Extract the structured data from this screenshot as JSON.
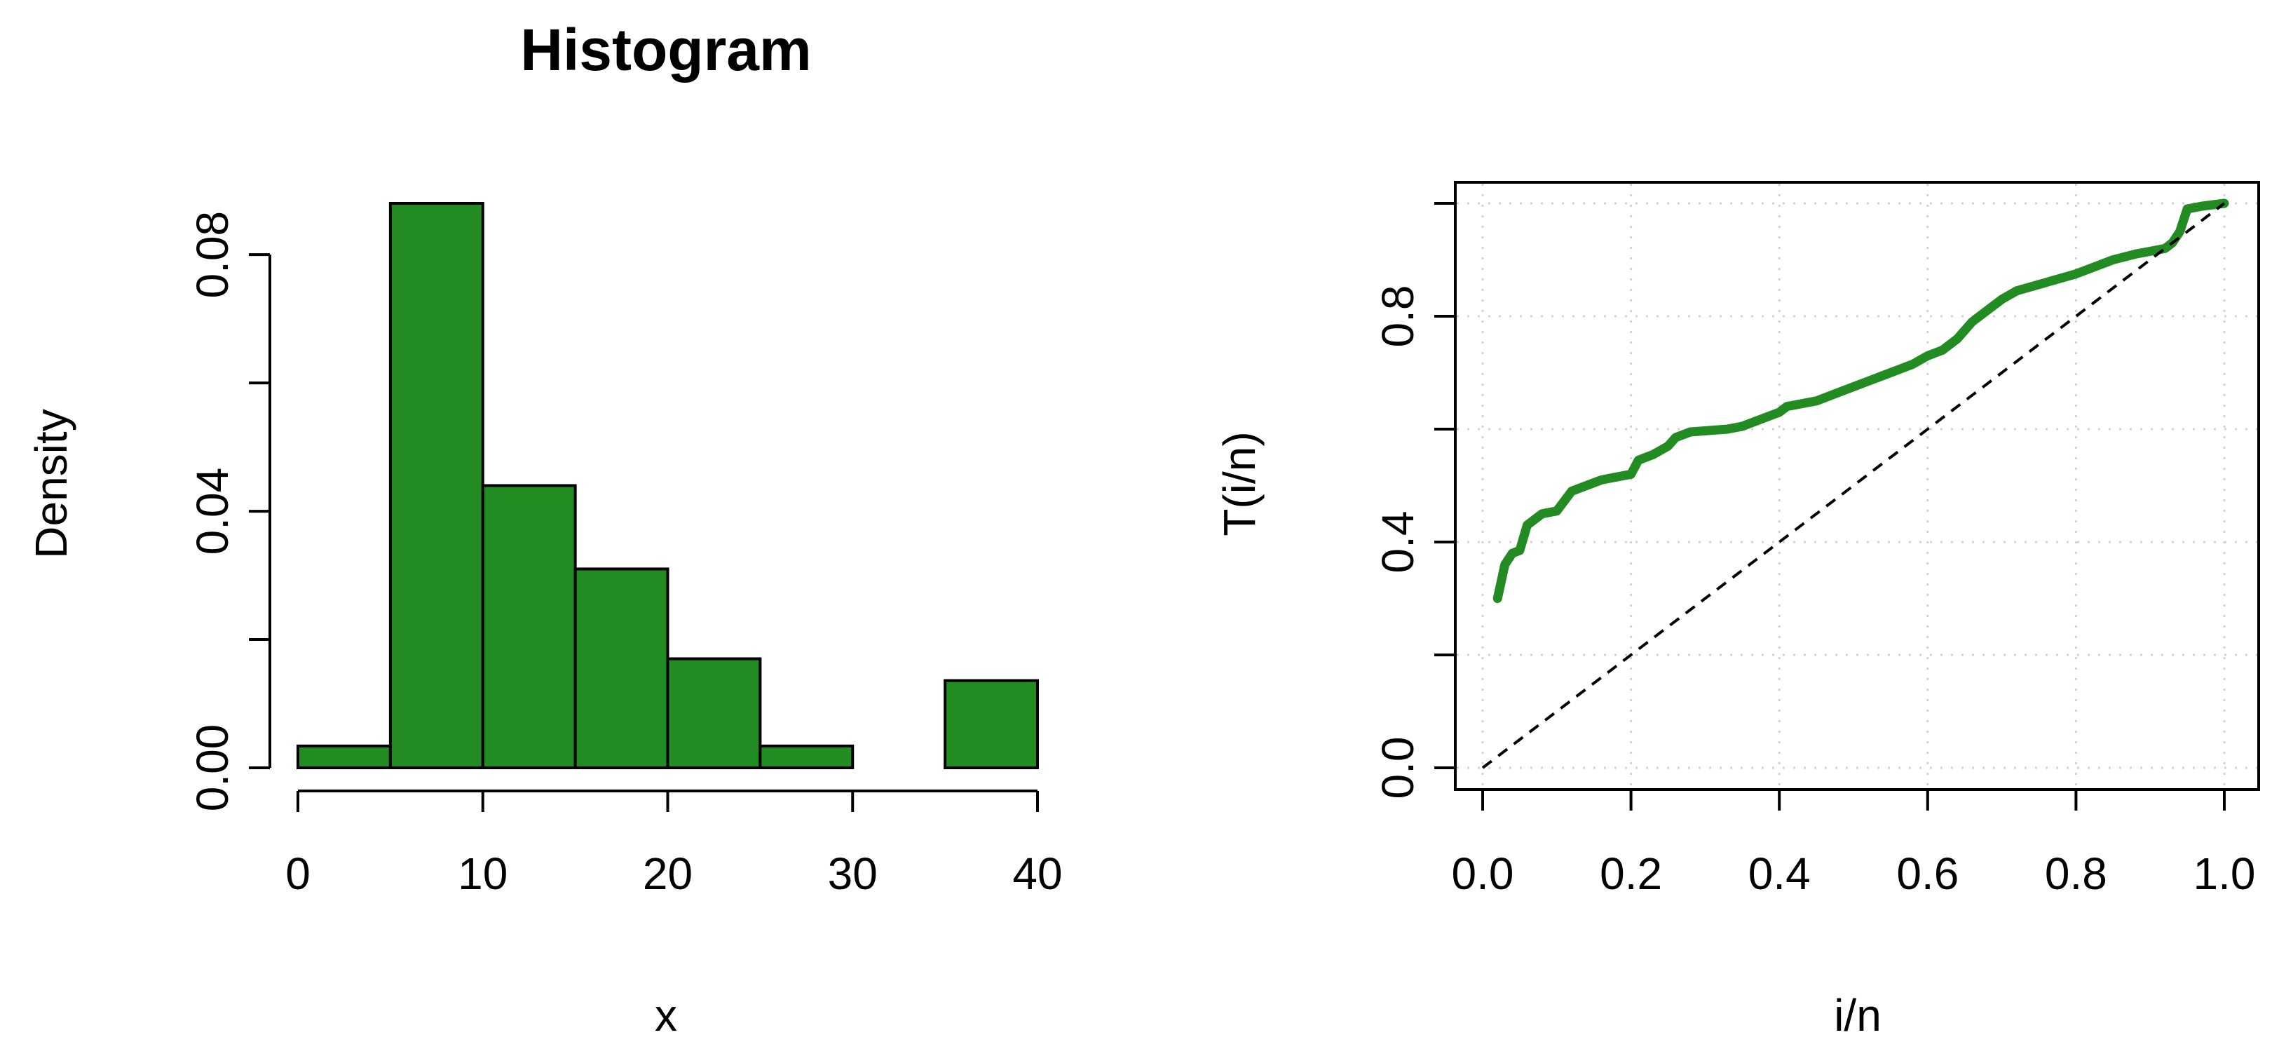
{
  "chart_data": [
    {
      "type": "bar",
      "title": "Histogram",
      "xlabel": "x",
      "ylabel": "Density",
      "bins": [
        [
          0,
          5
        ],
        [
          5,
          10
        ],
        [
          10,
          15
        ],
        [
          15,
          20
        ],
        [
          20,
          25
        ],
        [
          25,
          30
        ],
        [
          30,
          35
        ],
        [
          35,
          40
        ]
      ],
      "values": [
        0.0034,
        0.088,
        0.044,
        0.031,
        0.017,
        0.0034,
        0,
        0.0136
      ],
      "xlim": [
        0,
        40
      ],
      "ylim": [
        0,
        0.088
      ],
      "x_ticks": [
        0,
        10,
        20,
        30,
        40
      ],
      "x_tick_labels": [
        "0",
        "10",
        "20",
        "30",
        "40"
      ],
      "y_ticks": [
        0,
        0.02,
        0.04,
        0.06,
        0.08
      ],
      "y_tick_labels": [
        "0.00",
        "",
        "0.04",
        "",
        "0.08"
      ],
      "bar_color": "#228B22",
      "grid": false
    },
    {
      "type": "line",
      "title": "",
      "xlabel": "i/n",
      "ylabel": "T(i/n)",
      "xlim": [
        0,
        1
      ],
      "ylim": [
        0,
        1
      ],
      "x_ticks": [
        0,
        0.2,
        0.4,
        0.6,
        0.8,
        1.0
      ],
      "x_tick_labels": [
        "0.0",
        "0.2",
        "0.4",
        "0.6",
        "0.8",
        "1.0"
      ],
      "y_ticks": [
        0,
        0.2,
        0.4,
        0.6,
        0.8,
        1.0
      ],
      "y_tick_labels": [
        "0.0",
        "",
        "0.4",
        "",
        "0.8",
        ""
      ],
      "grid": true,
      "series": [
        {
          "color": "#228B22",
          "points": [
            [
              0.02,
              0.3
            ],
            [
              0.03,
              0.36
            ],
            [
              0.04,
              0.38
            ],
            [
              0.05,
              0.385
            ],
            [
              0.06,
              0.43
            ],
            [
              0.08,
              0.45
            ],
            [
              0.1,
              0.455
            ],
            [
              0.12,
              0.49
            ],
            [
              0.14,
              0.5
            ],
            [
              0.16,
              0.51
            ],
            [
              0.18,
              0.515
            ],
            [
              0.2,
              0.52
            ],
            [
              0.21,
              0.545
            ],
            [
              0.23,
              0.555
            ],
            [
              0.25,
              0.57
            ],
            [
              0.26,
              0.585
            ],
            [
              0.28,
              0.595
            ],
            [
              0.33,
              0.6
            ],
            [
              0.35,
              0.605
            ],
            [
              0.37,
              0.615
            ],
            [
              0.39,
              0.625
            ],
            [
              0.4,
              0.63
            ],
            [
              0.41,
              0.64
            ],
            [
              0.45,
              0.65
            ],
            [
              0.47,
              0.66
            ],
            [
              0.5,
              0.675
            ],
            [
              0.54,
              0.695
            ],
            [
              0.58,
              0.715
            ],
            [
              0.6,
              0.73
            ],
            [
              0.62,
              0.74
            ],
            [
              0.64,
              0.76
            ],
            [
              0.66,
              0.79
            ],
            [
              0.68,
              0.81
            ],
            [
              0.7,
              0.83
            ],
            [
              0.72,
              0.845
            ],
            [
              0.76,
              0.86
            ],
            [
              0.8,
              0.875
            ],
            [
              0.82,
              0.885
            ],
            [
              0.85,
              0.9
            ],
            [
              0.88,
              0.91
            ],
            [
              0.9,
              0.915
            ],
            [
              0.92,
              0.92
            ],
            [
              0.93,
              0.93
            ],
            [
              0.94,
              0.95
            ],
            [
              0.95,
              0.99
            ],
            [
              0.97,
              0.995
            ],
            [
              1.0,
              1.0
            ]
          ]
        },
        {
          "color": "#000000",
          "style": "dashed",
          "points": [
            [
              0,
              0
            ],
            [
              1,
              1
            ]
          ]
        }
      ]
    }
  ]
}
